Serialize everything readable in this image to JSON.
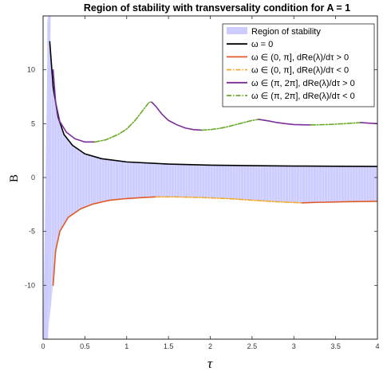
{
  "chart_data": {
    "type": "line",
    "title": "Region of stability with transversality condition for A = 1",
    "xlabel": "τ",
    "ylabel": "B",
    "xlim": [
      0,
      4
    ],
    "ylim": [
      -15,
      15
    ],
    "xticks": [
      0,
      0.5,
      1,
      1.5,
      2,
      2.5,
      3,
      3.5,
      4
    ],
    "xtick_labels": [
      "0",
      "0.5",
      "1",
      "1.5",
      "2",
      "2.5",
      "3",
      "3.5",
      "4"
    ],
    "yticks": [
      -10,
      -5,
      0,
      5,
      10
    ],
    "ytick_labels": [
      "-10",
      "-5",
      "0",
      "5",
      "10"
    ],
    "grid": false,
    "legend_position": "top-right",
    "legend": [
      {
        "label": "Region of stability",
        "color": "#ccccff",
        "style": "patch"
      },
      {
        "label": "ω = 0",
        "color": "#000000",
        "style": "solid"
      },
      {
        "label": "ω ∈ (0, π], dRe(λ)/dτ > 0",
        "color": "#e05a28",
        "style": "solid"
      },
      {
        "label": "ω ∈ (0, π], dRe(λ)/dτ < 0",
        "color": "#f0a830",
        "style": "dashdot"
      },
      {
        "label": "ω ∈ (π, 2π], dRe(λ)/dτ > 0",
        "color": "#7b2d9a",
        "style": "solid"
      },
      {
        "label": "ω ∈ (π, 2π], dRe(λ)/dτ < 0",
        "color": "#6aaa2a",
        "style": "dashdot"
      }
    ],
    "series": [
      {
        "key": "omega0",
        "color": "#000000",
        "style": "solid",
        "x": [
          0.08,
          0.12,
          0.18,
          0.25,
          0.35,
          0.5,
          0.7,
          1.0,
          1.5,
          2.0,
          2.5,
          3.0,
          3.5,
          4.0
        ],
        "y": [
          12.6,
          8.4,
          5.6,
          4.0,
          3.0,
          2.2,
          1.75,
          1.45,
          1.25,
          1.15,
          1.1,
          1.07,
          1.05,
          1.03
        ]
      },
      {
        "key": "low_pos",
        "color": "#e05a28",
        "style": "solid",
        "x": [
          0.12,
          0.15,
          0.2,
          0.3,
          0.45,
          0.6,
          0.8,
          1.0,
          1.2,
          1.35
        ],
        "y": [
          -10.0,
          -6.8,
          -5.0,
          -3.7,
          -2.9,
          -2.45,
          -2.1,
          -1.95,
          -1.85,
          -1.8
        ]
      },
      {
        "key": "low_neg",
        "color": "#f0a830",
        "style": "dashdot",
        "x": [
          1.35,
          1.6,
          1.9,
          2.2,
          2.5,
          2.8,
          3.1
        ],
        "y": [
          -1.8,
          -1.8,
          -1.85,
          -1.95,
          -2.1,
          -2.25,
          -2.35
        ]
      },
      {
        "key": "low_pos2",
        "color": "#e05a28",
        "style": "solid",
        "x": [
          3.1,
          3.3,
          3.6,
          4.0
        ],
        "y": [
          -2.35,
          -2.3,
          -2.25,
          -2.2
        ]
      },
      {
        "key": "high_pos1",
        "color": "#7b2d9a",
        "style": "solid",
        "x": [
          0.12,
          0.15,
          0.2,
          0.28,
          0.38,
          0.5,
          0.62
        ],
        "y": [
          10.0,
          7.0,
          5.2,
          4.2,
          3.6,
          3.3,
          3.3
        ]
      },
      {
        "key": "high_neg1",
        "color": "#6aaa2a",
        "style": "dashdot",
        "x": [
          0.62,
          0.75,
          0.9,
          1.0,
          1.1,
          1.2,
          1.27,
          1.3
        ],
        "y": [
          3.3,
          3.5,
          4.0,
          4.5,
          5.3,
          6.3,
          7.0,
          7.0
        ]
      },
      {
        "key": "high_pos2",
        "color": "#7b2d9a",
        "style": "solid",
        "x": [
          1.3,
          1.35,
          1.42,
          1.5,
          1.6,
          1.7,
          1.8,
          1.9
        ],
        "y": [
          7.0,
          6.6,
          5.9,
          5.3,
          4.9,
          4.6,
          4.45,
          4.4
        ]
      },
      {
        "key": "high_neg2",
        "color": "#6aaa2a",
        "style": "dashdot",
        "x": [
          1.9,
          2.0,
          2.1,
          2.2,
          2.3,
          2.4,
          2.5,
          2.58
        ],
        "y": [
          4.4,
          4.45,
          4.55,
          4.7,
          4.9,
          5.1,
          5.3,
          5.4
        ]
      },
      {
        "key": "high_pos3",
        "color": "#7b2d9a",
        "style": "solid",
        "x": [
          2.58,
          2.7,
          2.8,
          2.9,
          3.0,
          3.1,
          3.2
        ],
        "y": [
          5.4,
          5.25,
          5.1,
          5.0,
          4.92,
          4.9,
          4.88
        ]
      },
      {
        "key": "high_neg3",
        "color": "#6aaa2a",
        "style": "dashdot",
        "x": [
          3.2,
          3.4,
          3.6,
          3.8
        ],
        "y": [
          4.88,
          4.92,
          5.0,
          5.1
        ]
      },
      {
        "key": "high_pos4",
        "color": "#7b2d9a",
        "style": "solid",
        "x": [
          3.8,
          3.9,
          4.0
        ],
        "y": [
          5.1,
          5.05,
          5.0
        ]
      }
    ],
    "stability_region": {
      "color": "#ccccff",
      "upper_series": "omega0",
      "lower_x": [
        0.05,
        0.12,
        0.15,
        0.2,
        0.3,
        0.45,
        0.6,
        0.8,
        1.0,
        1.2,
        1.35,
        1.6,
        1.9,
        2.2,
        2.5,
        2.8,
        3.1,
        3.3,
        3.6,
        4.0
      ],
      "lower_y": [
        -15,
        -10.0,
        -6.8,
        -5.0,
        -3.7,
        -2.9,
        -2.45,
        -2.1,
        -1.95,
        -1.85,
        -1.8,
        -1.8,
        -1.85,
        -1.95,
        -2.1,
        -2.25,
        -2.35,
        -2.3,
        -2.25,
        -2.2
      ]
    }
  }
}
